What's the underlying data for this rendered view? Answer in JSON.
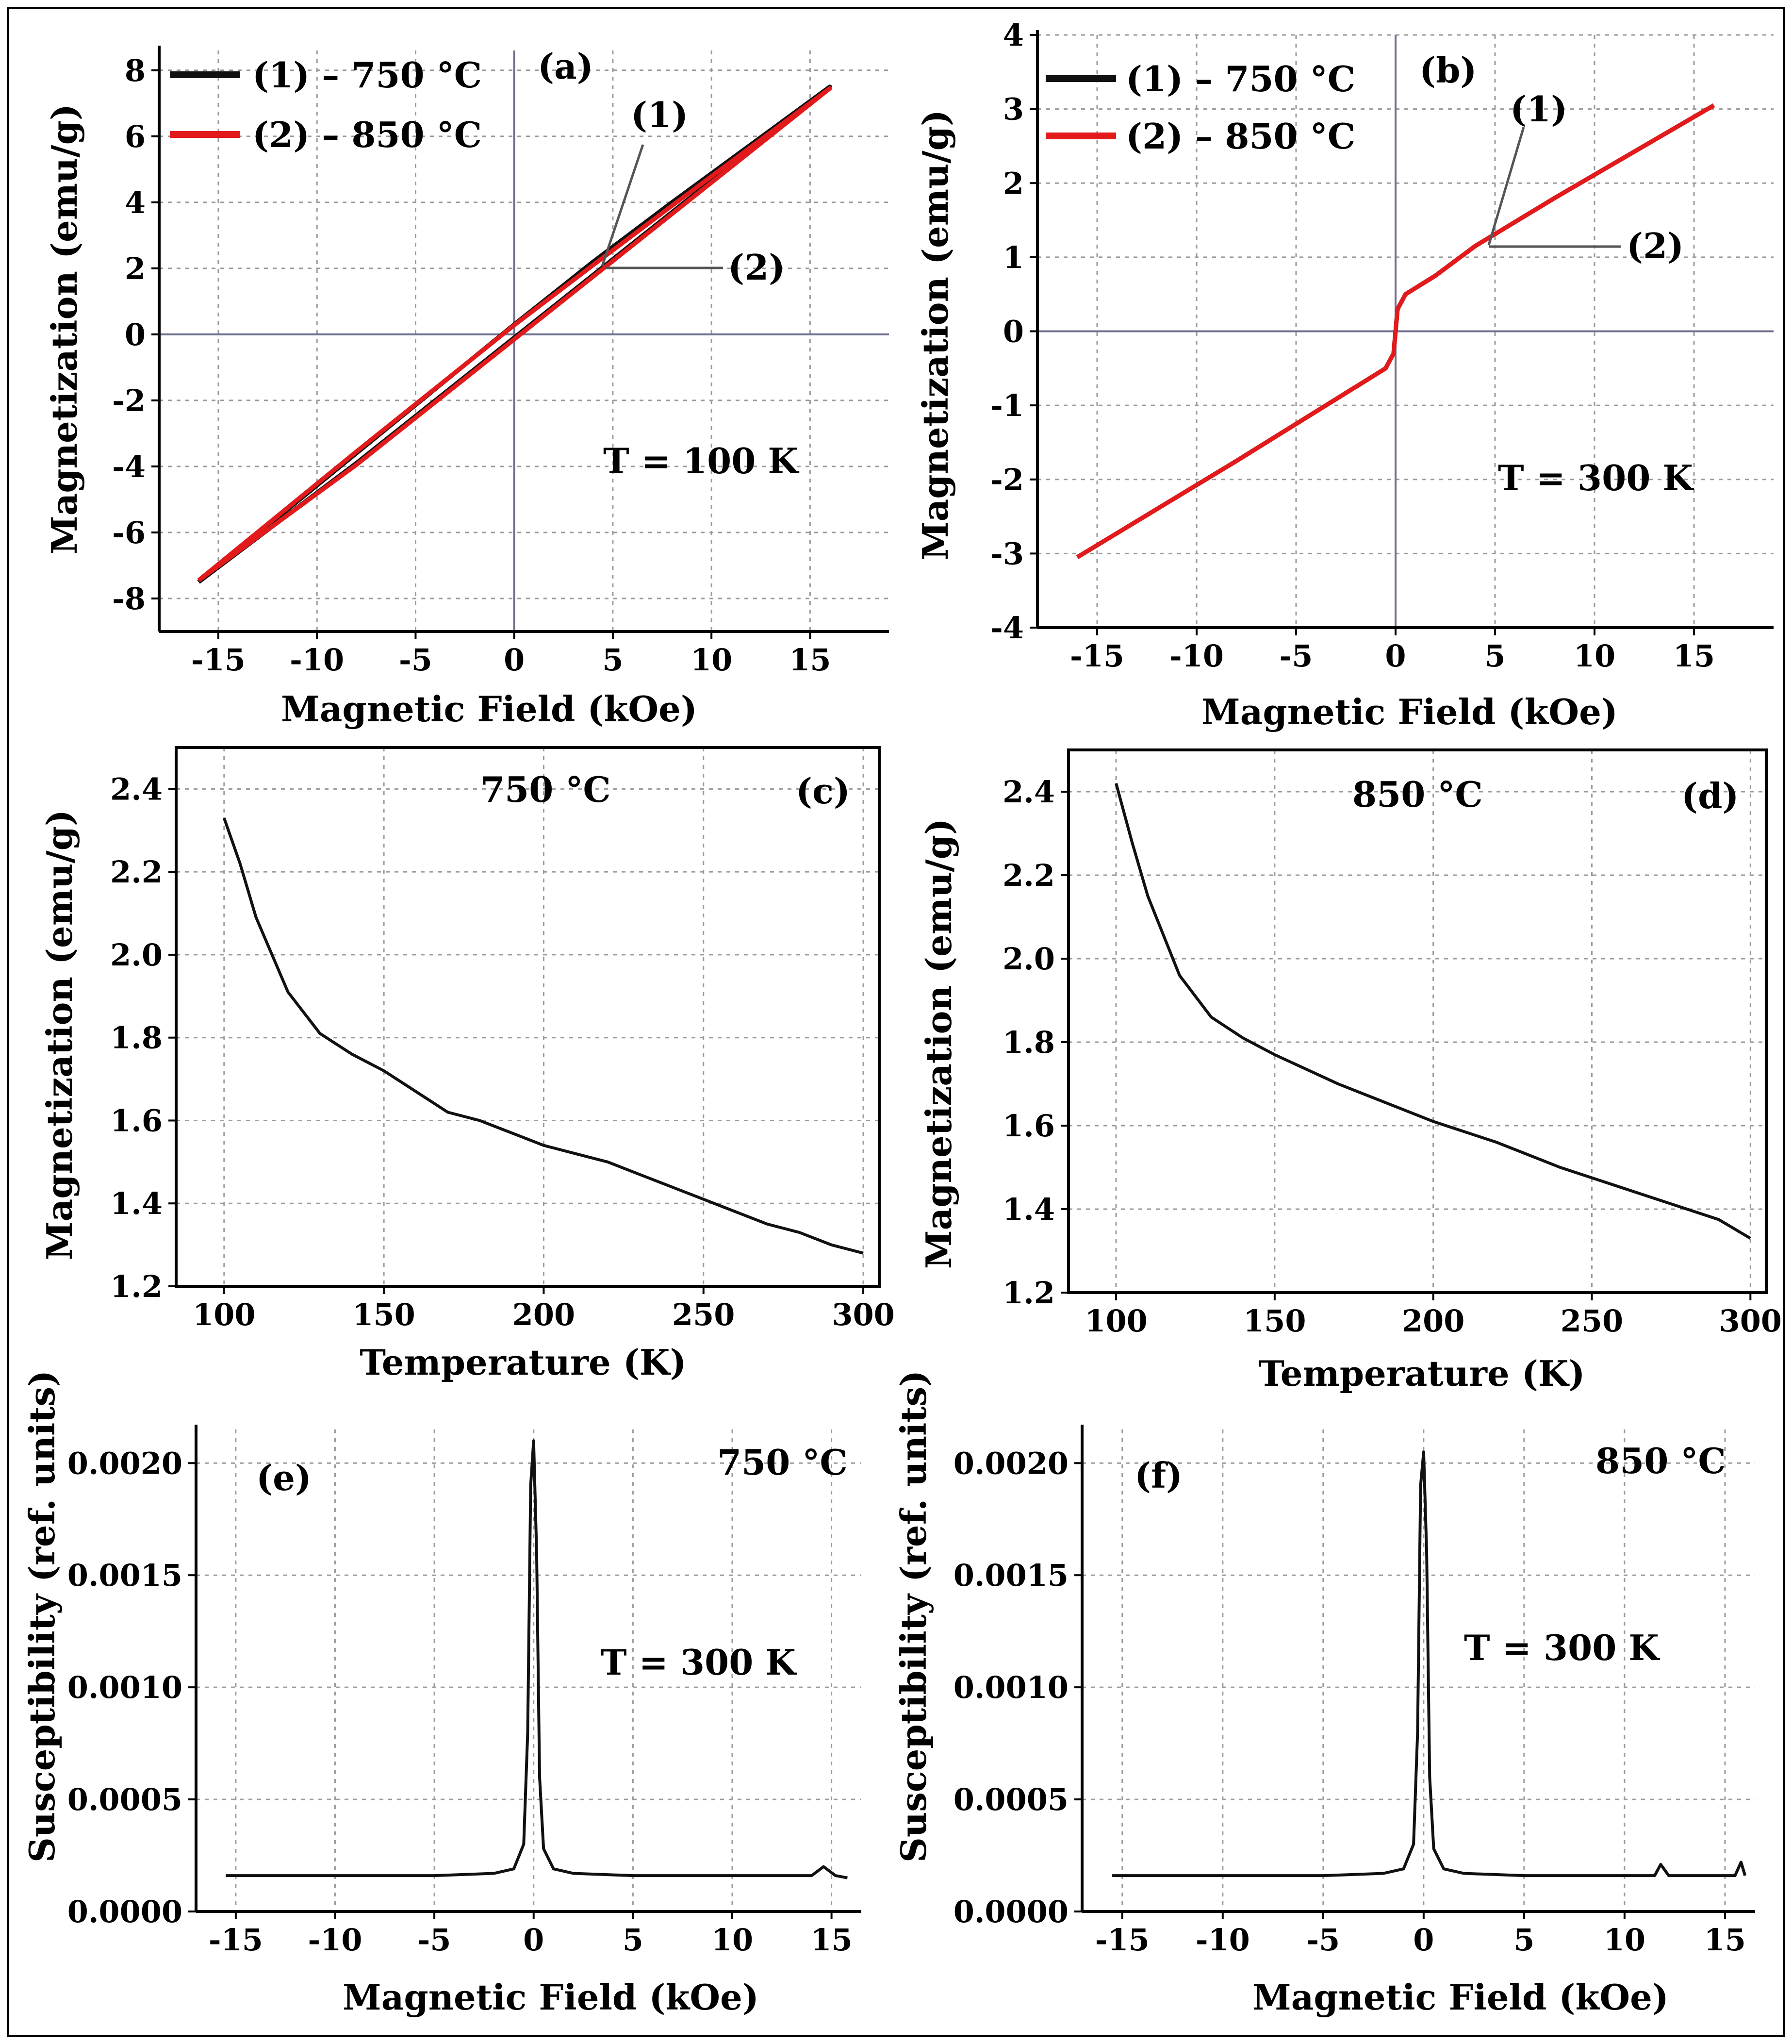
{
  "colors": {
    "series1": "#111111",
    "series2": "#e31a1c",
    "grid": "#9a9a9a",
    "zero_line": "#6f6f8f"
  },
  "chart_data": [
    {
      "id": "a",
      "type": "line",
      "panel_label": "(a)",
      "xlabel": "Magnetic Field (kOe)",
      "ylabel": "Magnetization (emu/g)",
      "xlim": [
        -18,
        19
      ],
      "ylim": [
        -9,
        8.6
      ],
      "xticks": [
        -15,
        -10,
        -5,
        0,
        5,
        10,
        15
      ],
      "xtick_labels": [
        "-15",
        "-10",
        "-5",
        "0",
        "5",
        "10",
        "15"
      ],
      "yticks": [
        -8,
        -6,
        -4,
        -2,
        0,
        2,
        4,
        6,
        8
      ],
      "ytick_labels": [
        "-8",
        "-6",
        "-4",
        "-2",
        "0",
        "2",
        "4",
        "6",
        "8"
      ],
      "annotation": "T = 100 K",
      "legend": [
        "(1) – 750 °C",
        "(2) – 850 °C"
      ],
      "callouts": [
        "(1)",
        "(2)"
      ],
      "series": [
        {
          "name": "(1) – 750 °C",
          "color": "#111111",
          "x": [
            -16,
            -8,
            0,
            4,
            8,
            16,
            8,
            4,
            0,
            -4,
            -8,
            -16
          ],
          "y": [
            -7.5,
            -3.6,
            0.3,
            2.2,
            4.0,
            7.5,
            3.7,
            1.8,
            -0.1,
            -2.0,
            -3.9,
            -7.5
          ]
        },
        {
          "name": "(2) – 850 °C",
          "color": "#e31a1c",
          "x": [
            -16,
            -8,
            0,
            4,
            8,
            16,
            8,
            4,
            0,
            -4,
            -8,
            -16
          ],
          "y": [
            -7.45,
            -3.55,
            0.28,
            2.1,
            3.9,
            7.45,
            3.65,
            1.75,
            -0.15,
            -2.05,
            -3.95,
            -7.45
          ]
        }
      ]
    },
    {
      "id": "b",
      "type": "line",
      "panel_label": "(b)",
      "xlabel": "Magnetic Field (kOe)",
      "ylabel": "Magnetization (emu/g)",
      "xlim": [
        -18,
        19
      ],
      "ylim": [
        -4,
        4
      ],
      "xticks": [
        -15,
        -10,
        -5,
        0,
        5,
        10,
        15
      ],
      "xtick_labels": [
        "-15",
        "-10",
        "-5",
        "0",
        "5",
        "10",
        "15"
      ],
      "yticks": [
        -4,
        -3,
        -2,
        -1,
        0,
        1,
        2,
        3,
        4
      ],
      "ytick_labels": [
        "-4",
        "-3",
        "-2",
        "-1",
        "0",
        "1",
        "2",
        "3",
        "4"
      ],
      "annotation": "T = 300 K",
      "legend": [
        "(1) – 750 °C",
        "(2) – 850 °C"
      ],
      "callouts": [
        "(1)",
        "(2)"
      ],
      "series": [
        {
          "name": "(1) – 750 °C",
          "color": "#111111",
          "x": [
            -16,
            -8,
            -2,
            -0.5,
            -0.1,
            0,
            0.1,
            0.5,
            2,
            4,
            8,
            16
          ],
          "y": [
            -3.05,
            -1.75,
            -0.75,
            -0.5,
            -0.3,
            0,
            0.3,
            0.5,
            0.75,
            1.15,
            1.8,
            3.05
          ]
        },
        {
          "name": "(2) – 850 °C",
          "color": "#e31a1c",
          "x": [
            -16,
            -8,
            -2,
            -0.5,
            -0.1,
            0,
            0.1,
            0.5,
            2,
            4,
            8,
            16
          ],
          "y": [
            -3.05,
            -1.75,
            -0.75,
            -0.5,
            -0.3,
            0,
            0.3,
            0.5,
            0.75,
            1.15,
            1.8,
            3.05
          ]
        }
      ]
    },
    {
      "id": "c",
      "type": "line",
      "panel_label": "(c)",
      "title": "750 °C",
      "xlabel": "Temperature (K)",
      "ylabel": "Magnetization (emu/g)",
      "xlim": [
        85,
        305
      ],
      "ylim": [
        1.2,
        2.5
      ],
      "xticks": [
        100,
        150,
        200,
        250,
        300
      ],
      "xtick_labels": [
        "100",
        "150",
        "200",
        "250",
        "300"
      ],
      "yticks": [
        1.2,
        1.4,
        1.6,
        1.8,
        2.0,
        2.2,
        2.4
      ],
      "ytick_labels": [
        "1.2",
        "1.4",
        "1.6",
        "1.8",
        "2.0",
        "2.2",
        "2.4"
      ],
      "series": [
        {
          "name": "750 °C",
          "color": "#111111",
          "x": [
            100,
            105,
            110,
            120,
            130,
            140,
            150,
            160,
            170,
            180,
            190,
            200,
            210,
            220,
            230,
            240,
            250,
            260,
            270,
            280,
            290,
            300
          ],
          "y": [
            2.33,
            2.22,
            2.09,
            1.91,
            1.81,
            1.76,
            1.72,
            1.67,
            1.62,
            1.6,
            1.57,
            1.54,
            1.52,
            1.5,
            1.47,
            1.44,
            1.41,
            1.38,
            1.35,
            1.33,
            1.3,
            1.28
          ]
        }
      ]
    },
    {
      "id": "d",
      "type": "line",
      "panel_label": "(d)",
      "title": "850 °C",
      "xlabel": "Temperature (K)",
      "ylabel": "Magnetization (emu/g)",
      "xlim": [
        85,
        305
      ],
      "ylim": [
        1.2,
        2.5
      ],
      "xticks": [
        100,
        150,
        200,
        250,
        300
      ],
      "xtick_labels": [
        "100",
        "150",
        "200",
        "250",
        "300"
      ],
      "yticks": [
        1.2,
        1.4,
        1.6,
        1.8,
        2.0,
        2.2,
        2.4
      ],
      "ytick_labels": [
        "1.2",
        "1.4",
        "1.6",
        "1.8",
        "2.0",
        "2.2",
        "2.4"
      ],
      "series": [
        {
          "name": "850 °C",
          "color": "#111111",
          "x": [
            100,
            105,
            110,
            120,
            130,
            140,
            150,
            160,
            170,
            180,
            190,
            200,
            210,
            220,
            230,
            240,
            250,
            260,
            270,
            280,
            290,
            300
          ],
          "y": [
            2.42,
            2.28,
            2.15,
            1.96,
            1.86,
            1.81,
            1.77,
            1.735,
            1.7,
            1.67,
            1.64,
            1.61,
            1.585,
            1.56,
            1.53,
            1.5,
            1.475,
            1.45,
            1.425,
            1.4,
            1.375,
            1.33
          ]
        }
      ]
    },
    {
      "id": "e",
      "type": "line",
      "panel_label": "(e)",
      "title": "750 °C",
      "annotation": "T = 300 K",
      "xlabel": "Magnetic Field (kOe)",
      "ylabel": "Susceptibility (ref. units)",
      "xlim": [
        -17,
        16.5
      ],
      "ylim": [
        0,
        0.00215
      ],
      "xticks": [
        -15,
        -10,
        -5,
        0,
        5,
        10,
        15
      ],
      "xtick_labels": [
        "-15",
        "-10",
        "-5",
        "0",
        "5",
        "10",
        "15"
      ],
      "yticks": [
        0,
        0.0005,
        0.001,
        0.0015,
        0.002
      ],
      "ytick_labels": [
        "0.0000",
        "0.0005",
        "0.0010",
        "0.0015",
        "0.0020"
      ],
      "series": [
        {
          "name": "750 °C",
          "color": "#111111",
          "x": [
            -15.5,
            -10,
            -5,
            -2,
            -1,
            -0.5,
            -0.3,
            -0.15,
            0,
            0.15,
            0.3,
            0.5,
            1,
            2,
            5,
            10,
            14,
            14.6,
            15.2,
            15.8
          ],
          "y": [
            0.00016,
            0.00016,
            0.00016,
            0.00017,
            0.00019,
            0.0003,
            0.0008,
            0.0019,
            0.0021,
            0.0016,
            0.0006,
            0.00028,
            0.00019,
            0.00017,
            0.00016,
            0.00016,
            0.00016,
            0.0002,
            0.00016,
            0.00015
          ]
        }
      ]
    },
    {
      "id": "f",
      "type": "line",
      "panel_label": "(f)",
      "title": "850 °C",
      "annotation": "T = 300 K",
      "xlabel": "Magnetic Field (kOe)",
      "ylabel": "Susceptibility (ref. units)",
      "xlim": [
        -17,
        16.5
      ],
      "ylim": [
        0,
        0.00215
      ],
      "xticks": [
        -15,
        -10,
        -5,
        0,
        5,
        10,
        15
      ],
      "xtick_labels": [
        "-15",
        "-10",
        "-5",
        "0",
        "5",
        "10",
        "15"
      ],
      "yticks": [
        0,
        0.0005,
        0.001,
        0.0015,
        0.002
      ],
      "ytick_labels": [
        "0.0000",
        "0.0005",
        "0.0010",
        "0.0015",
        "0.0020"
      ],
      "series": [
        {
          "name": "850 °C",
          "color": "#111111",
          "x": [
            -15.5,
            -10,
            -5,
            -2,
            -1,
            -0.5,
            -0.3,
            -0.15,
            0,
            0.15,
            0.3,
            0.5,
            1,
            2,
            5,
            10,
            11.5,
            11.8,
            12.2,
            15.5,
            15.8,
            16
          ],
          "y": [
            0.00016,
            0.00016,
            0.00016,
            0.00017,
            0.00019,
            0.0003,
            0.0008,
            0.0019,
            0.00205,
            0.0016,
            0.0006,
            0.00028,
            0.00019,
            0.00017,
            0.00016,
            0.00016,
            0.00016,
            0.00021,
            0.00016,
            0.00016,
            0.00022,
            0.00016
          ]
        }
      ]
    }
  ]
}
